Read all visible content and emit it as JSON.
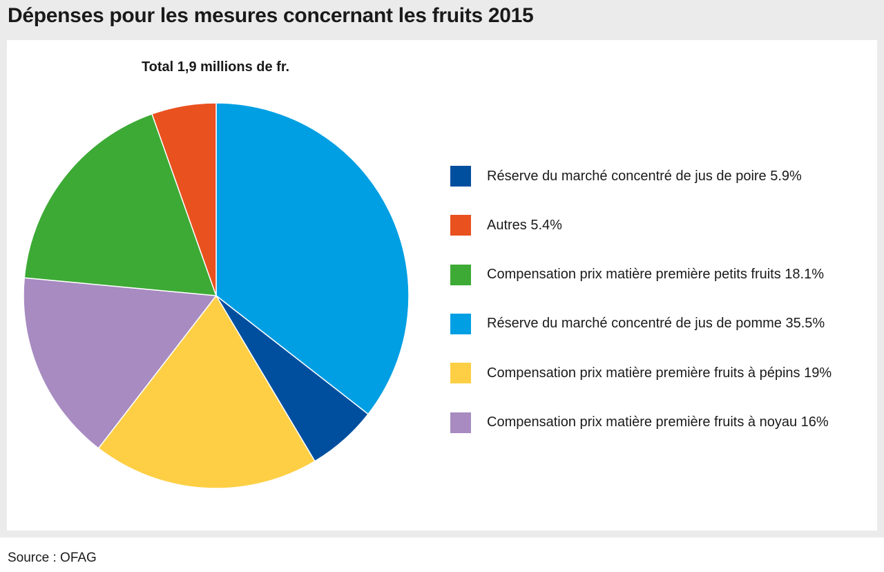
{
  "header": {
    "title": "Dépenses pour les mesures concernant les fruits 2015"
  },
  "footer": {
    "source": "Source : OFAG"
  },
  "chart_data": {
    "type": "pie",
    "title": "Total 1,9 millions de fr.",
    "start_angle_deg": 0,
    "direction": "clockwise",
    "slices": [
      {
        "label": "Réserve du marché concentré de jus de pomme 35.5%",
        "value": 35.5,
        "color": "#009fe3"
      },
      {
        "label": "Réserve du marché concentré de jus de poire 5.9%",
        "value": 5.9,
        "color": "#004f9f"
      },
      {
        "label": "Compensation prix matière première fruits à pépins 19%",
        "value": 19,
        "color": "#fecf45"
      },
      {
        "label": "Compensation prix matière première fruits à noyau 16%",
        "value": 16,
        "color": "#a78bc1"
      },
      {
        "label": "Compensation prix matière première petits fruits 18.1%",
        "value": 18.1,
        "color": "#3daa35"
      },
      {
        "label": "Autres 5.4%",
        "value": 5.4,
        "color": "#e9511f"
      }
    ],
    "legend": [
      {
        "label": "Réserve du marché concentré de jus de poire 5.9%",
        "color": "#004f9f"
      },
      {
        "label": "Autres 5.4%",
        "color": "#e9511f"
      },
      {
        "label": "Compensation prix matière première petits fruits 18.1%",
        "color": "#3daa35"
      },
      {
        "label": "Réserve du marché concentré de jus de pomme 35.5%",
        "color": "#009fe3"
      },
      {
        "label": "Compensation prix matière première fruits à pépins 19%",
        "color": "#fecf45"
      },
      {
        "label": "Compensation prix matière première fruits à noyau 16%",
        "color": "#a78bc1"
      }
    ],
    "legend_position": "right"
  }
}
